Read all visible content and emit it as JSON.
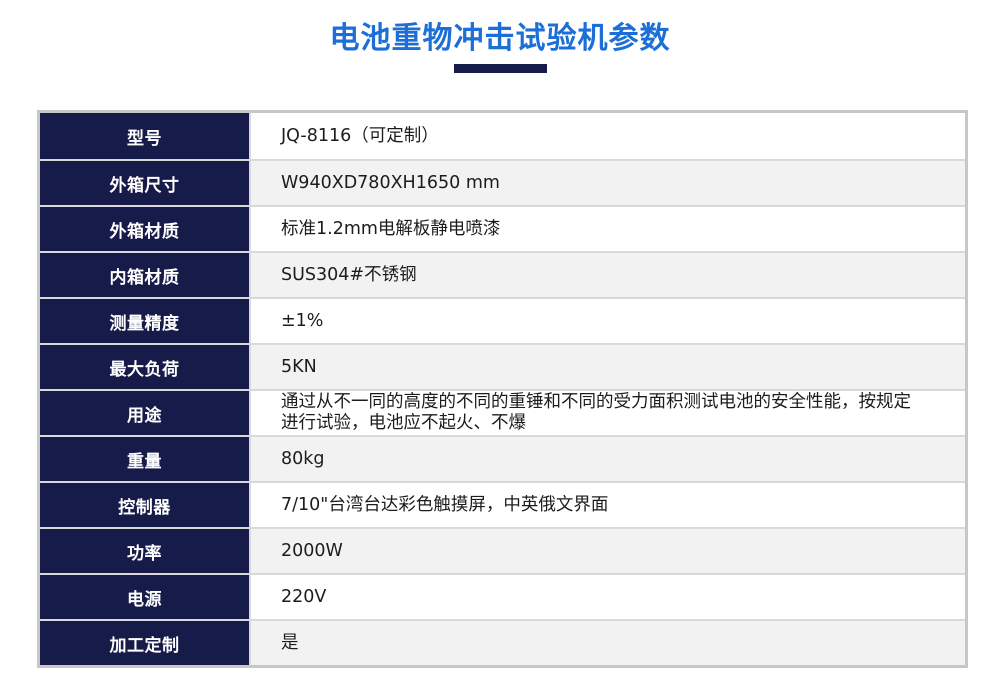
{
  "header": {
    "title": "电池重物冲击试验机参数"
  },
  "table": {
    "rows": [
      {
        "label": "型号",
        "value": "JQ-8116（可定制）"
      },
      {
        "label": "外箱尺寸",
        "value": "W940XD780XH1650 mm"
      },
      {
        "label": "外箱材质",
        "value": "标准1.2mm电解板静电喷漆"
      },
      {
        "label": "内箱材质",
        "value": "SUS304#不锈钢"
      },
      {
        "label": "测量精度",
        "value": "±1%"
      },
      {
        "label": "最大负荷",
        "value": "5KN"
      },
      {
        "label": "用途",
        "value": "通过从不一同的高度的不同的重锤和不同的受力面积测试电池的安全性能，按规定进行试验，电池应不起火、不爆"
      },
      {
        "label": "重量",
        "value": "80kg"
      },
      {
        "label": "控制器",
        "value": "7/10\"台湾台达彩色触摸屏，中英俄文界面"
      },
      {
        "label": "功率",
        "value": "2000W"
      },
      {
        "label": "电源",
        "value": "220V"
      },
      {
        "label": "加工定制",
        "value": "是"
      }
    ]
  },
  "colors": {
    "title_text": "#1c6fd6",
    "title_underline": "#161b49",
    "label_bg": "#161b49",
    "label_text": "#ffffff",
    "row_alt_bg": "#f2f2f2",
    "grid_line": "#d9d9d9",
    "outer_border": "#c7c7c7",
    "value_text": "#1c1c1c"
  }
}
